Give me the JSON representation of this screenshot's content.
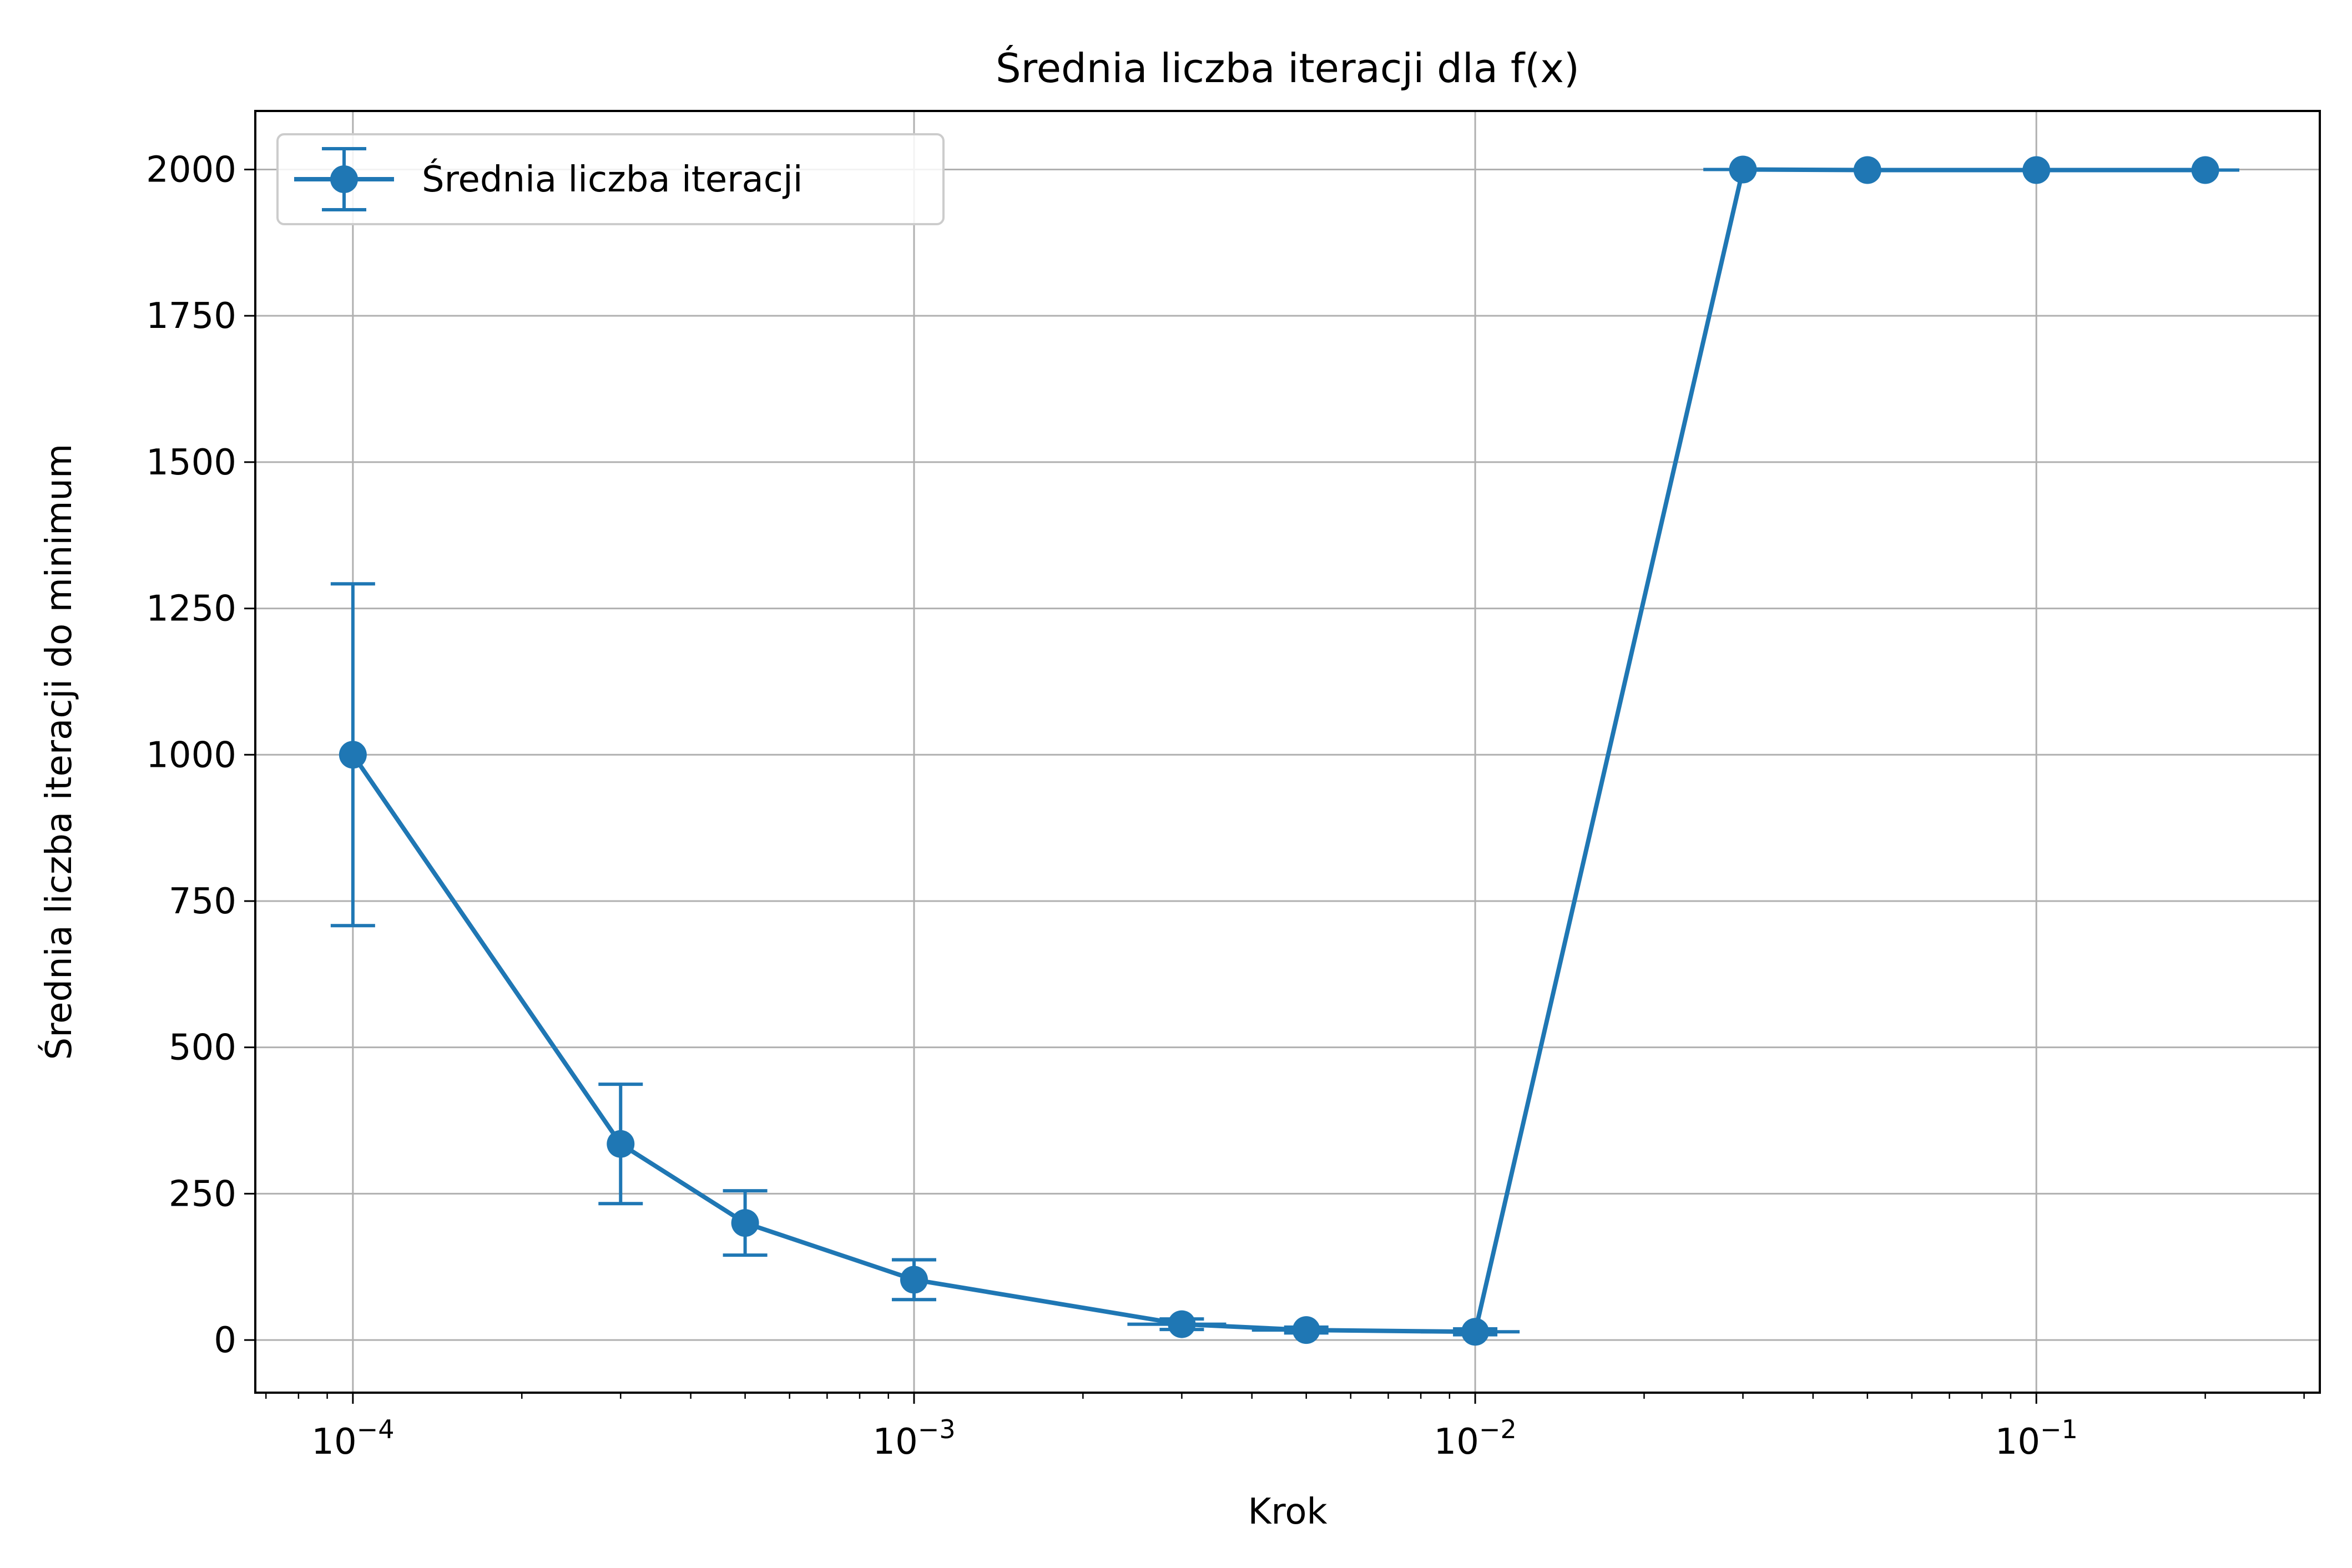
{
  "chart_data": {
    "type": "line",
    "title": "Średnia liczba iteracji dla f(x)",
    "xlabel": "Krok",
    "ylabel": "Średnia liczba iteracji do minimum",
    "x_scale": "log",
    "xlim": [
      6.7e-05,
      0.32
    ],
    "ylim": [
      -90,
      2100
    ],
    "grid": true,
    "legend_position": "top-left",
    "color": "#1f77b4",
    "x_ticks": [
      {
        "value": 0.0001,
        "base": "10",
        "exponent": "−4"
      },
      {
        "value": 0.001,
        "base": "10",
        "exponent": "−3"
      },
      {
        "value": 0.01,
        "base": "10",
        "exponent": "−2"
      },
      {
        "value": 0.1,
        "base": "10",
        "exponent": "−1"
      }
    ],
    "y_ticks": [
      0,
      250,
      500,
      750,
      1000,
      1250,
      1500,
      1750,
      2000
    ],
    "series": [
      {
        "name": "Średnia liczba iteracji",
        "x": [
          0.0001,
          0.0003,
          0.0005,
          0.001,
          0.003,
          0.005,
          0.01,
          0.03,
          0.05,
          0.1,
          0.2
        ],
        "y": [
          1000,
          335,
          200,
          103,
          27,
          17,
          14,
          2000,
          1999,
          1999,
          1999
        ],
        "yerr": [
          292,
          102,
          55,
          34,
          9,
          5,
          5,
          0,
          0,
          0,
          0
        ],
        "xerr": [
          0,
          0,
          0,
          0,
          0.0006,
          0.001,
          0.002,
          0.0045,
          0,
          0,
          0.03
        ]
      }
    ]
  }
}
